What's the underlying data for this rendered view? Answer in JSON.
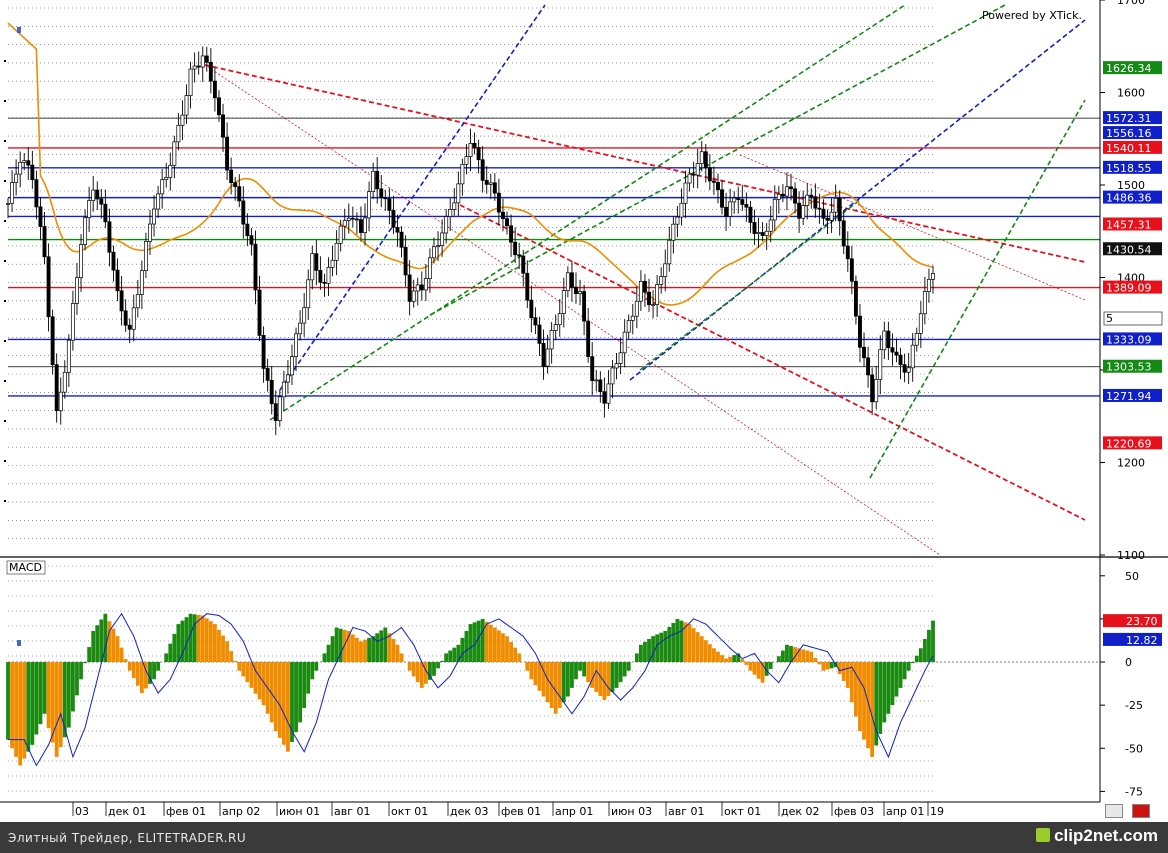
{
  "credit": "Powered by XTick.",
  "indicator_label": "MACD",
  "footer": {
    "left": "Элитный Трейдер, ELITETRADER.RU",
    "right": "clip2net.com"
  },
  "partial_input_value": "5",
  "colors": {
    "red": "#e8101a",
    "blue": "#1020c8",
    "green": "#108810",
    "orange": "#f08c00",
    "black": "#000000"
  },
  "chart_data": [
    {
      "type": "candlestick",
      "ylim": [
        1100,
        1700
      ],
      "yticks": [
        1100,
        1200,
        1300,
        1400,
        1500,
        1600,
        1700
      ],
      "ytick_labels": [
        "1100",
        "1200",
        "",
        "1400",
        "1500",
        "1600",
        "1700"
      ],
      "x_categories": [
        "03",
        "дек 01",
        "фев 01",
        "апр 02",
        "июн 01",
        "авг 01",
        "окт 01",
        "дек 03",
        "фев 01",
        "апр 01",
        "июн 03",
        "авг 01",
        "окт 01",
        "дек 02",
        "фев 03",
        "апр 01",
        "19"
      ],
      "price_points": [
        [
          0,
          1480
        ],
        [
          3,
          1530
        ],
        [
          6,
          1510
        ],
        [
          9,
          1420
        ],
        [
          12,
          1250
        ],
        [
          15,
          1330
        ],
        [
          18,
          1440
        ],
        [
          21,
          1500
        ],
        [
          24,
          1460
        ],
        [
          27,
          1380
        ],
        [
          30,
          1340
        ],
        [
          33,
          1410
        ],
        [
          36,
          1480
        ],
        [
          39,
          1510
        ],
        [
          42,
          1560
        ],
        [
          45,
          1620
        ],
        [
          48,
          1640
        ],
        [
          51,
          1600
        ],
        [
          54,
          1520
        ],
        [
          57,
          1480
        ],
        [
          60,
          1430
        ],
        [
          63,
          1300
        ],
        [
          66,
          1250
        ],
        [
          69,
          1300
        ],
        [
          72,
          1350
        ],
        [
          75,
          1420
        ],
        [
          78,
          1390
        ],
        [
          81,
          1440
        ],
        [
          84,
          1470
        ],
        [
          87,
          1450
        ],
        [
          90,
          1510
        ],
        [
          93,
          1480
        ],
        [
          96,
          1450
        ],
        [
          99,
          1380
        ],
        [
          102,
          1390
        ],
        [
          105,
          1430
        ],
        [
          108,
          1460
        ],
        [
          111,
          1500
        ],
        [
          114,
          1550
        ],
        [
          117,
          1510
        ],
        [
          120,
          1490
        ],
        [
          123,
          1450
        ],
        [
          126,
          1420
        ],
        [
          129,
          1360
        ],
        [
          132,
          1310
        ],
        [
          135,
          1350
        ],
        [
          138,
          1400
        ],
        [
          141,
          1380
        ],
        [
          144,
          1290
        ],
        [
          147,
          1270
        ],
        [
          150,
          1310
        ],
        [
          153,
          1350
        ],
        [
          156,
          1390
        ],
        [
          159,
          1370
        ],
        [
          162,
          1420
        ],
        [
          165,
          1470
        ],
        [
          168,
          1510
        ],
        [
          171,
          1530
        ],
        [
          174,
          1500
        ],
        [
          177,
          1470
        ],
        [
          180,
          1490
        ],
        [
          183,
          1460
        ],
        [
          186,
          1440
        ],
        [
          189,
          1480
        ],
        [
          192,
          1500
        ],
        [
          195,
          1470
        ],
        [
          198,
          1490
        ],
        [
          201,
          1460
        ],
        [
          204,
          1480
        ],
        [
          207,
          1420
        ],
        [
          210,
          1330
        ],
        [
          213,
          1270
        ],
        [
          216,
          1340
        ],
        [
          219,
          1310
        ],
        [
          222,
          1300
        ],
        [
          225,
          1365
        ],
        [
          228,
          1410
        ]
      ],
      "horizontal_levels": [
        {
          "value": 1540.11,
          "color": "red"
        },
        {
          "value": 1518.55,
          "color": "blue"
        },
        {
          "value": 1486.36,
          "color": "blue"
        },
        {
          "value": 1466.0,
          "color": "blue"
        },
        {
          "value": 1441.0,
          "color": "green"
        },
        {
          "value": 1389.09,
          "color": "red"
        },
        {
          "value": 1333.09,
          "color": "blue"
        },
        {
          "value": 1271.94,
          "color": "blue"
        },
        {
          "value": 1303.53,
          "color": "black"
        },
        {
          "value": 1572.31,
          "color": "black"
        }
      ],
      "price_tags": [
        {
          "label": "1626.34",
          "value": 1626.34,
          "color": "green"
        },
        {
          "label": "1572.31",
          "value": 1572.31,
          "color": "blue"
        },
        {
          "label": "1556.16",
          "value": 1556.16,
          "color": "blue"
        },
        {
          "label": "1540.11",
          "value": 1540.11,
          "color": "red"
        },
        {
          "label": "1518.55",
          "value": 1518.55,
          "color": "blue"
        },
        {
          "label": "1486.36",
          "value": 1486.36,
          "color": "blue"
        },
        {
          "label": "1457.31",
          "value": 1457.31,
          "color": "red"
        },
        {
          "label": "1430.54",
          "value": 1430.54,
          "color": "black"
        },
        {
          "label": "1389.09",
          "value": 1389.09,
          "color": "red"
        },
        {
          "label": "1333.09",
          "value": 1333.09,
          "color": "blue"
        },
        {
          "label": "1303.53",
          "value": 1303.53,
          "color": "green"
        },
        {
          "label": "1271.94",
          "value": 1271.94,
          "color": "blue"
        },
        {
          "label": "1220.69",
          "value": 1220.69,
          "color": "red"
        }
      ]
    },
    {
      "type": "bar",
      "name": "MACD",
      "ylim": [
        -80,
        58
      ],
      "yticks": [
        50,
        25,
        0,
        -25,
        -50,
        -75
      ],
      "ytick_labels": [
        "50",
        "25",
        "0",
        "-25",
        "-50",
        "-75"
      ],
      "value_tags": [
        {
          "label": "23.70",
          "value": 23.7,
          "color": "red"
        },
        {
          "label": "12.82",
          "value": 12.82,
          "color": "blue"
        }
      ],
      "points": [
        [
          0,
          -45
        ],
        [
          3,
          -60
        ],
        [
          6,
          -48
        ],
        [
          9,
          -30
        ],
        [
          12,
          -55
        ],
        [
          15,
          -38
        ],
        [
          18,
          -10
        ],
        [
          21,
          18
        ],
        [
          24,
          28
        ],
        [
          27,
          15
        ],
        [
          30,
          -5
        ],
        [
          33,
          -18
        ],
        [
          36,
          -10
        ],
        [
          39,
          5
        ],
        [
          42,
          22
        ],
        [
          45,
          28
        ],
        [
          48,
          27
        ],
        [
          51,
          22
        ],
        [
          54,
          12
        ],
        [
          57,
          -5
        ],
        [
          60,
          -15
        ],
        [
          63,
          -25
        ],
        [
          66,
          -40
        ],
        [
          69,
          -52
        ],
        [
          72,
          -35
        ],
        [
          75,
          -10
        ],
        [
          78,
          5
        ],
        [
          81,
          20
        ],
        [
          84,
          18
        ],
        [
          87,
          12
        ],
        [
          90,
          15
        ],
        [
          93,
          20
        ],
        [
          96,
          10
        ],
        [
          99,
          -5
        ],
        [
          102,
          -15
        ],
        [
          105,
          -8
        ],
        [
          108,
          5
        ],
        [
          111,
          10
        ],
        [
          114,
          22
        ],
        [
          117,
          25
        ],
        [
          120,
          20
        ],
        [
          123,
          15
        ],
        [
          126,
          5
        ],
        [
          129,
          -10
        ],
        [
          132,
          -20
        ],
        [
          135,
          -30
        ],
        [
          138,
          -20
        ],
        [
          141,
          -5
        ],
        [
          144,
          -15
        ],
        [
          147,
          -22
        ],
        [
          150,
          -15
        ],
        [
          153,
          -5
        ],
        [
          156,
          10
        ],
        [
          159,
          15
        ],
        [
          162,
          18
        ],
        [
          165,
          25
        ],
        [
          168,
          22
        ],
        [
          171,
          15
        ],
        [
          174,
          8
        ],
        [
          177,
          2
        ],
        [
          180,
          5
        ],
        [
          183,
          -5
        ],
        [
          186,
          -12
        ],
        [
          189,
          0
        ],
        [
          192,
          10
        ],
        [
          195,
          8
        ],
        [
          198,
          6
        ],
        [
          201,
          -5
        ],
        [
          204,
          -3
        ],
        [
          207,
          -15
        ],
        [
          210,
          -40
        ],
        [
          213,
          -55
        ],
        [
          216,
          -35
        ],
        [
          219,
          -20
        ],
        [
          222,
          -5
        ],
        [
          225,
          8
        ],
        [
          228,
          24
        ]
      ]
    }
  ]
}
